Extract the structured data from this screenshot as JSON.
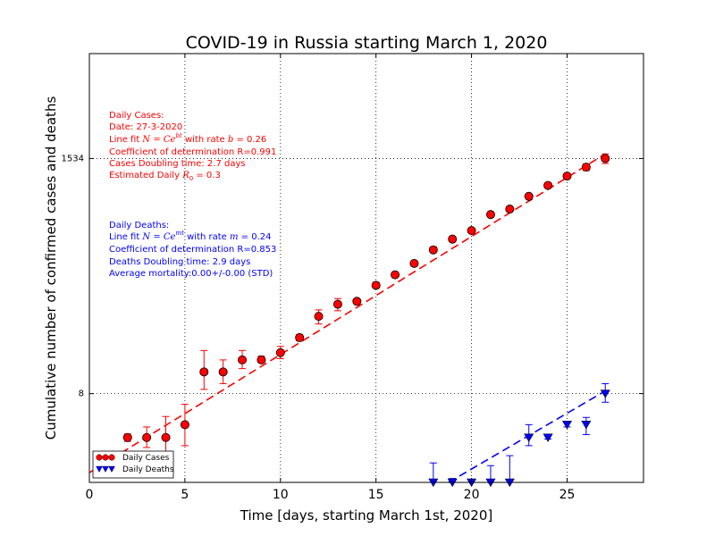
{
  "chart_data": {
    "type": "scatter",
    "title": "COVID-19 in Russia starting March 1, 2020",
    "xlabel": "Time [days, starting March 1st, 2020]",
    "ylabel": "Cumulative number of confirmed cases and deaths",
    "x_scale": "linear",
    "y_scale": "log",
    "xlim": [
      0,
      29
    ],
    "ylim": [
      1.1,
      16000
    ],
    "x_ticks": [
      0,
      5,
      10,
      15,
      20,
      25
    ],
    "y_ticks": [
      {
        "value": 8,
        "label": "8"
      },
      {
        "value": 1534,
        "label": "1534"
      }
    ],
    "grid": true,
    "legend_position": "bottom-left",
    "legend": [
      {
        "label": "Daily Cases",
        "color": "#ff0000",
        "marker": "circle"
      },
      {
        "label": "Daily Deaths",
        "color": "#0000ff",
        "marker": "triangle-down"
      }
    ],
    "series": [
      {
        "name": "Daily Cases",
        "color": "#ff0000",
        "marker": "circle",
        "points": [
          {
            "x": 2,
            "y": 3,
            "err_lo": 2.75,
            "err_hi": 3.25
          },
          {
            "x": 3,
            "y": 3,
            "err_lo": 2.4,
            "err_hi": 3.8
          },
          {
            "x": 4,
            "y": 3,
            "err_lo": 2.1,
            "err_hi": 4.8
          },
          {
            "x": 5,
            "y": 4,
            "err_lo": 2.5,
            "err_hi": 6.3
          },
          {
            "x": 6,
            "y": 13,
            "err_lo": 8.8,
            "err_hi": 21
          },
          {
            "x": 7,
            "y": 13,
            "err_lo": 10,
            "err_hi": 17
          },
          {
            "x": 8,
            "y": 17,
            "err_lo": 14,
            "err_hi": 21
          },
          {
            "x": 9,
            "y": 17,
            "err_lo": 16,
            "err_hi": 18.5
          },
          {
            "x": 10,
            "y": 20,
            "err_lo": 17.5,
            "err_hi": 23
          },
          {
            "x": 11,
            "y": 28,
            "err_lo": 26,
            "err_hi": 30
          },
          {
            "x": 12,
            "y": 45,
            "err_lo": 38,
            "err_hi": 52
          },
          {
            "x": 13,
            "y": 59,
            "err_lo": 51,
            "err_hi": 67
          },
          {
            "x": 14,
            "y": 63,
            "err_lo": 60,
            "err_hi": 66
          },
          {
            "x": 15,
            "y": 90,
            "err_lo": 85,
            "err_hi": 96
          },
          {
            "x": 16,
            "y": 114,
            "err_lo": 111,
            "err_hi": 118
          },
          {
            "x": 17,
            "y": 147,
            "err_lo": 143,
            "err_hi": 151
          },
          {
            "x": 18,
            "y": 199,
            "err_lo": 187,
            "err_hi": 212
          },
          {
            "x": 19,
            "y": 253,
            "err_lo": 246,
            "err_hi": 260
          },
          {
            "x": 20,
            "y": 306,
            "err_lo": 299,
            "err_hi": 313
          },
          {
            "x": 21,
            "y": 438,
            "err_lo": 415,
            "err_hi": 461
          },
          {
            "x": 22,
            "y": 495,
            "err_lo": 477,
            "err_hi": 513
          },
          {
            "x": 23,
            "y": 658,
            "err_lo": 645,
            "err_hi": 671
          },
          {
            "x": 24,
            "y": 840,
            "err_lo": 825,
            "err_hi": 855
          },
          {
            "x": 25,
            "y": 1036,
            "err_lo": 990,
            "err_hi": 1082
          },
          {
            "x": 26,
            "y": 1264,
            "err_lo": 1170,
            "err_hi": 1358
          },
          {
            "x": 27,
            "y": 1534,
            "err_lo": 1370,
            "err_hi": 1700
          }
        ],
        "fit_line": {
          "x_start": 0,
          "x_end": 27,
          "y_start": 1.37,
          "y_end": 1700
        }
      },
      {
        "name": "Daily Deaths",
        "color": "#0000ff",
        "marker": "triangle-down",
        "points": [
          {
            "x": 18,
            "y": 1,
            "err_lo": 0.9,
            "err_hi": 1.7
          },
          {
            "x": 19,
            "y": 1,
            "err_lo": 0.95,
            "err_hi": 1.2
          },
          {
            "x": 20,
            "y": 1,
            "err_lo": 0.95,
            "err_hi": 1.1
          },
          {
            "x": 21,
            "y": 1,
            "err_lo": 0.9,
            "err_hi": 1.6
          },
          {
            "x": 22,
            "y": 1,
            "err_lo": 0.8,
            "err_hi": 2.0
          },
          {
            "x": 23,
            "y": 3,
            "err_lo": 2.5,
            "err_hi": 4.0
          },
          {
            "x": 24,
            "y": 3,
            "err_lo": 2.9,
            "err_hi": 3.1
          },
          {
            "x": 25,
            "y": 4,
            "err_lo": 3.8,
            "err_hi": 4.2
          },
          {
            "x": 26,
            "y": 4,
            "err_lo": 3.2,
            "err_hi": 4.7
          },
          {
            "x": 27,
            "y": 8,
            "err_lo": 6.6,
            "err_hi": 10
          }
        ],
        "fit_line": {
          "x_start": 18.8,
          "x_end": 27,
          "y_start": 1.1,
          "y_end": 8.5
        }
      }
    ]
  },
  "annotations": {
    "cases": {
      "color": "#ff0000",
      "lines": [
        {
          "text": "Daily Cases:"
        },
        {
          "text": "Date: 27-3-2020"
        },
        {
          "prefix": "Line fit ",
          "formula_main": "N = Ce",
          "formula_sup": "bt",
          "suffix": " with rate ",
          "rate_symbol": "b",
          "rate_value": " = 0.26"
        },
        {
          "text": "Coefficient of determination R=0.991"
        },
        {
          "text": "Cases Doubling time: 2.7 days"
        },
        {
          "prefix": "Estimated Daily ",
          "formula_main": "R",
          "formula_sub": "0",
          "suffix": " = 0.3"
        }
      ]
    },
    "deaths": {
      "color": "#0000ff",
      "lines": [
        {
          "text": "Daily Deaths:"
        },
        {
          "prefix": "Line fit ",
          "formula_main": "N = Ce",
          "formula_sup": "mt",
          "suffix": " with rate ",
          "rate_symbol": "m",
          "rate_value": " = 0.24"
        },
        {
          "text": "Coefficient of determination R=0.853"
        },
        {
          "text": "Deaths Doubling time: 2.9 days"
        },
        {
          "text": "Average mortality:0.00+/-0.00 (STD)"
        }
      ]
    }
  }
}
